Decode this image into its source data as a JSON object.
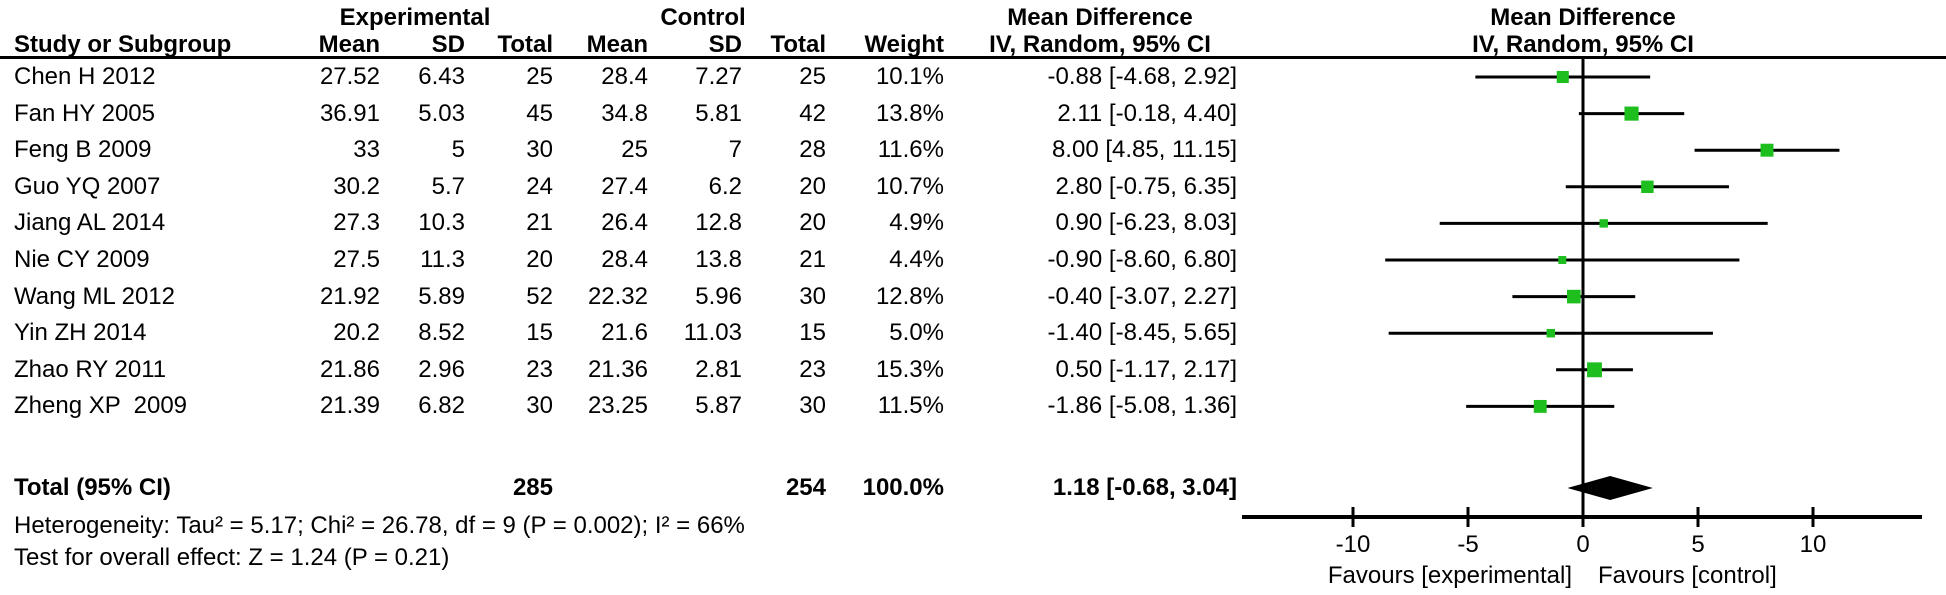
{
  "header": {
    "group_experimental": "Experimental",
    "group_control": "Control",
    "md_col_title": "Mean Difference",
    "md_col_sub": "IV, Random, 95% CI",
    "plot_title": "Mean Difference",
    "plot_sub": "IV, Random, 95% CI",
    "study": "Study or Subgroup",
    "mean": "Mean",
    "sd": "SD",
    "total": "Total",
    "weight": "Weight"
  },
  "totals": {
    "label": "Total (95% CI)",
    "exp_total": "285",
    "ctrl_total": "254",
    "weight": "100.0%",
    "ci_text": "1.18 [-0.68, 3.04]"
  },
  "footer": {
    "heterogeneity": "Heterogeneity: Tau² = 5.17; Chi² = 26.78, df = 9 (P = 0.002); I² = 66%",
    "overall_effect": "Test for overall effect: Z = 1.24 (P = 0.21)"
  },
  "chart_data": {
    "type": "scatter",
    "subtype": "forest-plot",
    "title": "Mean Difference",
    "method": "IV, Random, 95% CI",
    "x_ticks": [
      -10,
      -5,
      0,
      5,
      10
    ],
    "xlim": [
      -14.8,
      14.7
    ],
    "grid": false,
    "marker_color": "#1ebe1e",
    "line_color": "#000000",
    "favours_left": "Favours [experimental]",
    "favours_right": "Favours [control]",
    "studies": [
      {
        "name": "Chen H 2012",
        "mean_e": "27.52",
        "sd_e": "6.43",
        "n_e": "25",
        "mean_c": "28.4",
        "sd_c": "7.27",
        "n_c": "25",
        "weight": "10.1%",
        "weight_val": 10.1,
        "ci_text": "-0.88 [-4.68, 2.92]",
        "md": -0.88,
        "lo": -4.68,
        "hi": 2.92
      },
      {
        "name": "Fan HY 2005",
        "mean_e": "36.91",
        "sd_e": "5.03",
        "n_e": "45",
        "mean_c": "34.8",
        "sd_c": "5.81",
        "n_c": "42",
        "weight": "13.8%",
        "weight_val": 13.8,
        "ci_text": "2.11 [-0.18, 4.40]",
        "md": 2.11,
        "lo": -0.18,
        "hi": 4.4
      },
      {
        "name": "Feng B 2009",
        "mean_e": "33",
        "sd_e": "5",
        "n_e": "30",
        "mean_c": "25",
        "sd_c": "7",
        "n_c": "28",
        "weight": "11.6%",
        "weight_val": 11.6,
        "ci_text": "8.00 [4.85, 11.15]",
        "md": 8.0,
        "lo": 4.85,
        "hi": 11.15
      },
      {
        "name": "Guo YQ 2007",
        "mean_e": "30.2",
        "sd_e": "5.7",
        "n_e": "24",
        "mean_c": "27.4",
        "sd_c": "6.2",
        "n_c": "20",
        "weight": "10.7%",
        "weight_val": 10.7,
        "ci_text": "2.80 [-0.75, 6.35]",
        "md": 2.8,
        "lo": -0.75,
        "hi": 6.35
      },
      {
        "name": "Jiang AL 2014",
        "mean_e": "27.3",
        "sd_e": "10.3",
        "n_e": "21",
        "mean_c": "26.4",
        "sd_c": "12.8",
        "n_c": "20",
        "weight": "4.9%",
        "weight_val": 4.9,
        "ci_text": "0.90 [-6.23, 8.03]",
        "md": 0.9,
        "lo": -6.23,
        "hi": 8.03
      },
      {
        "name": "Nie CY 2009",
        "mean_e": "27.5",
        "sd_e": "11.3",
        "n_e": "20",
        "mean_c": "28.4",
        "sd_c": "13.8",
        "n_c": "21",
        "weight": "4.4%",
        "weight_val": 4.4,
        "ci_text": "-0.90 [-8.60, 6.80]",
        "md": -0.9,
        "lo": -8.6,
        "hi": 6.8
      },
      {
        "name": "Wang ML 2012",
        "mean_e": "21.92",
        "sd_e": "5.89",
        "n_e": "52",
        "mean_c": "22.32",
        "sd_c": "5.96",
        "n_c": "30",
        "weight": "12.8%",
        "weight_val": 12.8,
        "ci_text": "-0.40 [-3.07, 2.27]",
        "md": -0.4,
        "lo": -3.07,
        "hi": 2.27
      },
      {
        "name": "Yin ZH 2014",
        "mean_e": "20.2",
        "sd_e": "8.52",
        "n_e": "15",
        "mean_c": "21.6",
        "sd_c": "11.03",
        "n_c": "15",
        "weight": "5.0%",
        "weight_val": 5.0,
        "ci_text": "-1.40 [-8.45, 5.65]",
        "md": -1.4,
        "lo": -8.45,
        "hi": 5.65
      },
      {
        "name": "Zhao RY 2011",
        "mean_e": "21.86",
        "sd_e": "2.96",
        "n_e": "23",
        "mean_c": "21.36",
        "sd_c": "2.81",
        "n_c": "23",
        "weight": "15.3%",
        "weight_val": 15.3,
        "ci_text": "0.50 [-1.17, 2.17]",
        "md": 0.5,
        "lo": -1.17,
        "hi": 2.17
      },
      {
        "name": "Zheng XP  2009",
        "mean_e": "21.39",
        "sd_e": "6.82",
        "n_e": "30",
        "mean_c": "23.25",
        "sd_c": "5.87",
        "n_c": "30",
        "weight": "11.5%",
        "weight_val": 11.5,
        "ci_text": "-1.86 [-5.08, 1.36]",
        "md": -1.86,
        "lo": -5.08,
        "hi": 1.36
      }
    ],
    "total": {
      "md": 1.18,
      "lo": -0.68,
      "hi": 3.04
    }
  }
}
